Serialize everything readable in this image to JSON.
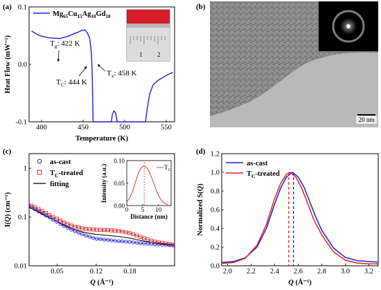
{
  "panels": {
    "a": {
      "label": "(a)",
      "legend": {
        "base": "Mg",
        "s1": "65",
        "e1": "Cu",
        "s2": "15",
        "e2": "Ag",
        "s3": "10",
        "e3": "Gd",
        "s4": "10"
      },
      "annotations": {
        "tg": {
          "main": "T",
          "sub": "g",
          "rest": ": 422 K"
        },
        "tc": {
          "main": "T",
          "sub": "C",
          "rest": ": 444 K"
        },
        "tx": {
          "main": "T",
          "sub": "x",
          "rest": ": 458 K"
        }
      },
      "photo_ruler_labels": [
        "1",
        "2"
      ],
      "xlabel": "Temperature (K)",
      "ylabel": "Heat Flow (mW⁻¹)"
    },
    "b": {
      "label": "(b)",
      "scale_bar": "20 nm"
    },
    "c": {
      "label": "(c)",
      "legend": {
        "ascast": "as-cast",
        "tc_main": "T",
        "tc_sub": "C",
        "tc_rest": "-treated",
        "fit": "fitting"
      },
      "xlabel_q": "Q",
      "xlabel_unit": " (Å⁻¹)",
      "ylabel_main": "I(",
      "ylabel_q": "Q",
      "ylabel_rest": ") (cm⁻¹)",
      "inset": {
        "xlabel": "Distance (nm)",
        "ylabel": "Intensity (a.u.)",
        "legend_main": "T",
        "legend_sub": "C"
      }
    },
    "d": {
      "label": "(d)",
      "legend": {
        "ascast": "as-cast",
        "tc_main": "T",
        "tc_sub": "C",
        "tc_rest": "-treated"
      },
      "xlabel_q": "Q",
      "xlabel_unit": " (Å⁻¹)",
      "ylabel_main": "Normalized S(",
      "ylabel_q": "Q",
      "ylabel_rest": ")"
    }
  },
  "colors": {
    "blue": "#1f1fd8",
    "red": "#e02020",
    "black": "#000000",
    "photo_red": "#d81c2a"
  },
  "chart_data": [
    {
      "panel": "a",
      "type": "line",
      "xlim": [
        385,
        560
      ],
      "ylim": [
        -0.1,
        0.1
      ],
      "xticks": [
        400,
        450,
        500,
        550
      ],
      "yticks": [
        -0.1,
        0.0,
        0.1
      ],
      "series": [
        {
          "name": "Mg65Cu15Ag10Gd10",
          "points": [
            [
              388,
              0.058
            ],
            [
              395,
              0.052
            ],
            [
              400,
              0.049
            ],
            [
              410,
              0.046
            ],
            [
              422,
              0.045
            ],
            [
              432,
              0.049
            ],
            [
              440,
              0.054
            ],
            [
              444,
              0.056
            ],
            [
              448,
              0.059
            ],
            [
              452,
              0.06
            ],
            [
              455,
              0.055
            ],
            [
              458,
              0.045
            ],
            [
              460,
              0.018
            ],
            [
              461,
              -0.02
            ],
            [
              462,
              -0.1
            ],
            [
              484,
              -0.1
            ],
            [
              485,
              -0.088
            ],
            [
              487,
              -0.081
            ],
            [
              489,
              -0.084
            ],
            [
              491,
              -0.1
            ],
            [
              525,
              -0.1
            ],
            [
              527,
              -0.078
            ],
            [
              530,
              -0.052
            ],
            [
              534,
              -0.036
            ],
            [
              540,
              -0.028
            ],
            [
              548,
              -0.021
            ],
            [
              553,
              -0.017
            ],
            [
              558,
              -0.014
            ]
          ]
        }
      ]
    },
    {
      "panel": "c",
      "type": "scatter",
      "log_y": true,
      "xlim": [
        0.0,
        0.26
      ],
      "ylim": [
        0.01,
        2
      ],
      "xticks": [
        0.05,
        0.12,
        0.18
      ],
      "yticks": [
        0.01,
        0.1,
        1
      ],
      "series": [
        {
          "name": "as-cast",
          "points": [
            [
              0.0,
              0.17
            ],
            [
              0.02,
              0.125
            ],
            [
              0.04,
              0.093
            ],
            [
              0.06,
              0.068
            ],
            [
              0.08,
              0.052
            ],
            [
              0.1,
              0.042
            ],
            [
              0.12,
              0.036
            ],
            [
              0.14,
              0.034
            ],
            [
              0.16,
              0.032
            ],
            [
              0.18,
              0.031
            ],
            [
              0.2,
              0.029
            ],
            [
              0.22,
              0.028
            ],
            [
              0.24,
              0.027
            ],
            [
              0.26,
              0.026
            ]
          ]
        },
        {
          "name": "TC-treated",
          "points": [
            [
              0.0,
              0.18
            ],
            [
              0.02,
              0.14
            ],
            [
              0.04,
              0.105
            ],
            [
              0.06,
              0.08
            ],
            [
              0.08,
              0.064
            ],
            [
              0.1,
              0.057
            ],
            [
              0.12,
              0.055
            ],
            [
              0.14,
              0.054
            ],
            [
              0.16,
              0.052
            ],
            [
              0.18,
              0.047
            ],
            [
              0.2,
              0.039
            ],
            [
              0.22,
              0.032
            ],
            [
              0.24,
              0.029
            ],
            [
              0.26,
              0.027
            ]
          ]
        },
        {
          "name": "fitting",
          "points": [
            [
              0.0,
              0.16
            ],
            [
              0.02,
              0.12
            ],
            [
              0.04,
              0.092
            ],
            [
              0.06,
              0.07
            ],
            [
              0.08,
              0.056
            ],
            [
              0.1,
              0.048
            ],
            [
              0.12,
              0.044
            ],
            [
              0.14,
              0.042
            ],
            [
              0.16,
              0.04
            ],
            [
              0.18,
              0.037
            ],
            [
              0.2,
              0.033
            ],
            [
              0.22,
              0.03
            ],
            [
              0.24,
              0.028
            ],
            [
              0.26,
              0.027
            ]
          ]
        }
      ],
      "inset": {
        "type": "line",
        "xlim": [
          0,
          14
        ],
        "ylim": [
          0,
          0.1
        ],
        "xticks": [
          0,
          5,
          10
        ],
        "yticks": [
          0.0,
          0.05,
          0.1
        ],
        "peak_x": 5.5,
        "series": [
          {
            "name": "TC",
            "points": [
              [
                0,
                0.008
              ],
              [
                1,
                0.018
              ],
              [
                2,
                0.035
              ],
              [
                3,
                0.058
              ],
              [
                4,
                0.078
              ],
              [
                5,
                0.087
              ],
              [
                5.5,
                0.088
              ],
              [
                6,
                0.086
              ],
              [
                7,
                0.077
              ],
              [
                8,
                0.06
              ],
              [
                9,
                0.04
              ],
              [
                10,
                0.023
              ],
              [
                11,
                0.011
              ],
              [
                12,
                0.005
              ],
              [
                13,
                0.002
              ]
            ]
          }
        ]
      }
    },
    {
      "panel": "d",
      "type": "line",
      "xlim": [
        1.95,
        3.28
      ],
      "ylim": [
        0.0,
        1.2
      ],
      "xticks": [
        2.0,
        2.2,
        2.4,
        2.6,
        2.8,
        3.0,
        3.2
      ],
      "yticks": [
        0.0,
        0.2,
        0.4,
        0.6,
        0.8,
        1.0,
        1.2
      ],
      "dashed_peaks": {
        "TC-treated": 2.52,
        "as-cast": 2.56
      },
      "series": [
        {
          "name": "as-cast",
          "points": [
            [
              1.95,
              0.035
            ],
            [
              2.05,
              0.045
            ],
            [
              2.15,
              0.085
            ],
            [
              2.25,
              0.2
            ],
            [
              2.33,
              0.4
            ],
            [
              2.4,
              0.66
            ],
            [
              2.45,
              0.83
            ],
            [
              2.5,
              0.95
            ],
            [
              2.55,
              1.0
            ],
            [
              2.6,
              0.95
            ],
            [
              2.65,
              0.84
            ],
            [
              2.7,
              0.68
            ],
            [
              2.75,
              0.52
            ],
            [
              2.8,
              0.38
            ],
            [
              2.9,
              0.19
            ],
            [
              3.0,
              0.09
            ],
            [
              3.1,
              0.055
            ],
            [
              3.2,
              0.045
            ],
            [
              3.28,
              0.04
            ]
          ]
        },
        {
          "name": "TC-treated",
          "points": [
            [
              1.95,
              0.025
            ],
            [
              2.05,
              0.035
            ],
            [
              2.15,
              0.08
            ],
            [
              2.25,
              0.22
            ],
            [
              2.33,
              0.44
            ],
            [
              2.4,
              0.72
            ],
            [
              2.45,
              0.88
            ],
            [
              2.5,
              0.98
            ],
            [
              2.53,
              1.0
            ],
            [
              2.58,
              0.95
            ],
            [
              2.63,
              0.83
            ],
            [
              2.68,
              0.67
            ],
            [
              2.73,
              0.5
            ],
            [
              2.8,
              0.33
            ],
            [
              2.9,
              0.15
            ],
            [
              3.0,
              0.06
            ],
            [
              3.1,
              0.03
            ],
            [
              3.2,
              0.02
            ],
            [
              3.28,
              0.02
            ]
          ]
        }
      ]
    }
  ]
}
